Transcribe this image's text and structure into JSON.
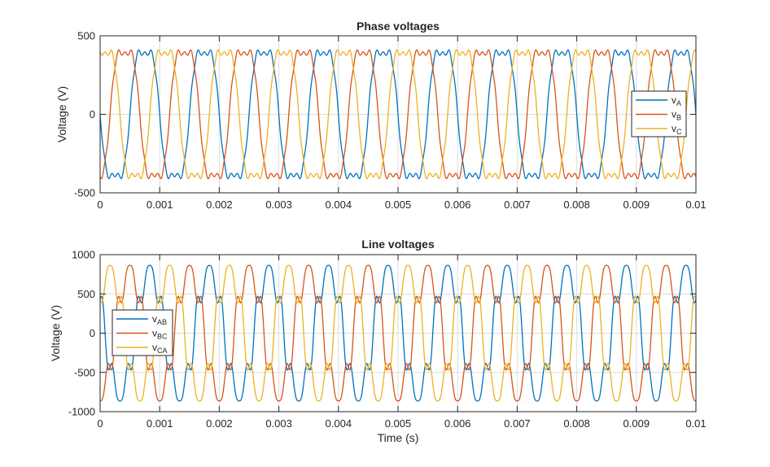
{
  "colors": {
    "series1": "#0072bd",
    "series2": "#d95319",
    "series3": "#edb120",
    "axis": "#262626",
    "grid": "#dcdcdc"
  },
  "chart_data": [
    {
      "type": "line",
      "title": "Phase voltages",
      "xlabel": "",
      "ylabel": "Voltage (V)",
      "xlim": [
        0,
        0.01
      ],
      "ylim": [
        -500,
        500
      ],
      "xticks": [
        0,
        0.001,
        0.002,
        0.003,
        0.004,
        0.005,
        0.006,
        0.007,
        0.008,
        0.009,
        0.01
      ],
      "xtick_labels": [
        "0",
        "0.001",
        "0.002",
        "0.003",
        "0.004",
        "0.005",
        "0.006",
        "0.007",
        "0.008",
        "0.009",
        "0.01"
      ],
      "yticks": [
        -500,
        0,
        500
      ],
      "ytick_labels": [
        "-500",
        "0",
        "500"
      ],
      "grid": true,
      "legend_position": "right",
      "signal": {
        "fundamental_frequency_hz": 1000,
        "amplitude_v": 460,
        "harmonics": [
          {
            "order": 3,
            "relative_amplitude": 0.17
          },
          {
            "order": 9,
            "relative_amplitude": 0.035
          }
        ],
        "phase_shift_deg": [
          0,
          -240,
          -120
        ],
        "sign": -1
      },
      "series": [
        {
          "name": "v",
          "subscript": "A"
        },
        {
          "name": "v",
          "subscript": "B"
        },
        {
          "name": "v",
          "subscript": "C"
        }
      ]
    },
    {
      "type": "line",
      "title": "Line voltages",
      "xlabel": "Time (s)",
      "ylabel": "Voltage (V)",
      "xlim": [
        0,
        0.01
      ],
      "ylim": [
        -1000,
        1000
      ],
      "xticks": [
        0,
        0.001,
        0.002,
        0.003,
        0.004,
        0.005,
        0.006,
        0.007,
        0.008,
        0.009,
        0.01
      ],
      "xtick_labels": [
        "0",
        "0.001",
        "0.002",
        "0.003",
        "0.004",
        "0.005",
        "0.006",
        "0.007",
        "0.008",
        "0.009",
        "0.01"
      ],
      "yticks": [
        -1000,
        -500,
        0,
        500,
        1000
      ],
      "ytick_labels": [
        "-1000",
        "-500",
        "0",
        "500",
        "1000"
      ],
      "grid": true,
      "legend_position": "left",
      "signal": {
        "fundamental_frequency_hz": 1000,
        "amplitude_v": 800,
        "harmonics": [
          {
            "order": 5,
            "relative_amplitude": 0.18
          },
          {
            "order": 7,
            "relative_amplitude": 0.1
          }
        ],
        "phase_shift_deg": [
          -30,
          -270,
          -150
        ],
        "sign": -1
      },
      "series": [
        {
          "name": "v",
          "subscript": "AB"
        },
        {
          "name": "v",
          "subscript": "BC"
        },
        {
          "name": "v",
          "subscript": "CA"
        }
      ]
    }
  ]
}
